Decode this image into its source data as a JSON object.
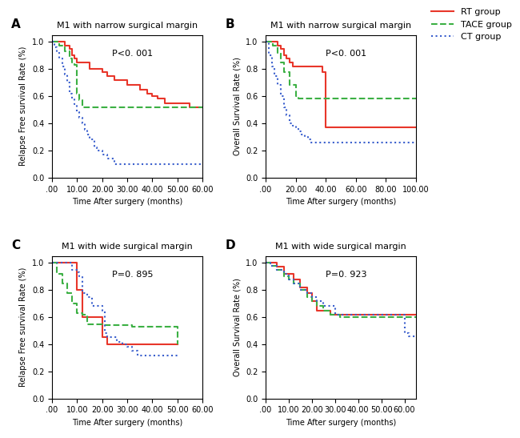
{
  "chart_data": [
    {
      "type": "step",
      "title": "M1 with narrow surgical margin",
      "y_label": "Relapse Free survival Rate (%)",
      "x_label": "Time After surgery (months)",
      "annotations": [
        "A",
        "P<0. 001"
      ],
      "xlim": [
        0,
        60
      ],
      "ylim": [
        0.0,
        1.05
      ],
      "xticks": [
        {
          "value": 0,
          "label": ".00"
        },
        {
          "value": 10,
          "label": "10.00"
        },
        {
          "value": 20,
          "label": "20.00"
        },
        {
          "value": 30,
          "label": "30.00"
        },
        {
          "value": 40,
          "label": "40.00"
        },
        {
          "value": 50,
          "label": "50.00"
        },
        {
          "value": 60,
          "label": "60.00"
        }
      ],
      "yticks": [
        0.0,
        0.2,
        0.4,
        0.6,
        0.8,
        1.0
      ],
      "legend": "upper right",
      "series": [
        {
          "name": "RT group",
          "color": "#e8362a",
          "line_style": "solid",
          "x": [
            0,
            3,
            5,
            7,
            8,
            9,
            10,
            12,
            15,
            18,
            20,
            22,
            25,
            30,
            35,
            38,
            40,
            42,
            45,
            55,
            60
          ],
          "values": [
            1.0,
            1.0,
            0.97,
            0.95,
            0.9,
            0.88,
            0.85,
            0.85,
            0.8,
            0.8,
            0.78,
            0.75,
            0.72,
            0.68,
            0.65,
            0.62,
            0.6,
            0.58,
            0.55,
            0.52,
            0.52
          ]
        },
        {
          "name": "TACE group",
          "color": "#3cb044",
          "line_style": "dashed",
          "x": [
            0,
            3,
            5,
            7,
            8,
            9,
            10,
            11,
            12,
            14,
            60
          ],
          "values": [
            1.0,
            0.97,
            0.93,
            0.88,
            0.85,
            0.83,
            0.62,
            0.57,
            0.52,
            0.52,
            0.52
          ]
        },
        {
          "name": "CT group",
          "color": "#3a5fcd",
          "line_style": "dotted",
          "x": [
            0,
            1,
            2,
            3,
            4,
            5,
            6,
            7,
            8,
            9,
            10,
            11,
            12,
            13,
            14,
            15,
            17,
            18,
            20,
            22,
            25,
            60
          ],
          "values": [
            1.0,
            0.96,
            0.92,
            0.88,
            0.82,
            0.76,
            0.7,
            0.62,
            0.58,
            0.54,
            0.48,
            0.44,
            0.4,
            0.35,
            0.32,
            0.28,
            0.22,
            0.2,
            0.17,
            0.14,
            0.1,
            0.1
          ]
        }
      ]
    },
    {
      "type": "step",
      "title": "M1 with narrow surgical margin",
      "y_label": "Overall Survival Rate (%)",
      "x_label": "Time After surgery (months)",
      "annotations": [
        "B",
        "P<0. 001"
      ],
      "xlim": [
        0,
        100
      ],
      "ylim": [
        0.0,
        1.05
      ],
      "xticks": [
        {
          "value": 0,
          "label": ".00"
        },
        {
          "value": 20,
          "label": "20.00"
        },
        {
          "value": 40,
          "label": "40.00"
        },
        {
          "value": 60,
          "label": "60.00"
        },
        {
          "value": 80,
          "label": "80.00"
        },
        {
          "value": 100,
          "label": "100.00"
        }
      ],
      "yticks": [
        0.0,
        0.2,
        0.4,
        0.6,
        0.8,
        1.0
      ],
      "series": [
        {
          "name": "RT group",
          "color": "#e8362a",
          "line_style": "solid",
          "x": [
            0,
            5,
            8,
            10,
            12,
            14,
            16,
            18,
            38,
            40,
            100
          ],
          "values": [
            1.0,
            1.0,
            0.97,
            0.95,
            0.9,
            0.88,
            0.85,
            0.82,
            0.78,
            0.37,
            0.37
          ]
        },
        {
          "name": "TACE group",
          "color": "#3cb044",
          "line_style": "dashed",
          "x": [
            0,
            2,
            5,
            8,
            10,
            12,
            16,
            20,
            22,
            28,
            100
          ],
          "values": [
            1.0,
            1.0,
            0.97,
            0.92,
            0.85,
            0.78,
            0.68,
            0.6,
            0.58,
            0.58,
            0.58
          ]
        },
        {
          "name": "CT group",
          "color": "#3a5fcd",
          "line_style": "dotted",
          "x": [
            0,
            2,
            4,
            6,
            8,
            10,
            12,
            14,
            16,
            18,
            20,
            22,
            24,
            26,
            28,
            30,
            100
          ],
          "values": [
            1.0,
            0.9,
            0.82,
            0.75,
            0.68,
            0.6,
            0.52,
            0.46,
            0.4,
            0.38,
            0.36,
            0.34,
            0.32,
            0.3,
            0.28,
            0.26,
            0.26
          ]
        }
      ]
    },
    {
      "type": "step",
      "title": "M1 with wide surgical margin",
      "y_label": "Relapse Free survival Rate (%)",
      "x_label": "Time After surgery (months)",
      "annotations": [
        "C",
        "P=0. 895"
      ],
      "xlim": [
        0,
        60
      ],
      "ylim": [
        0.0,
        1.05
      ],
      "xticks": [
        {
          "value": 0,
          "label": ".00"
        },
        {
          "value": 10,
          "label": "10.00"
        },
        {
          "value": 20,
          "label": "20.00"
        },
        {
          "value": 30,
          "label": "30.00"
        },
        {
          "value": 40,
          "label": "40.00"
        },
        {
          "value": 50,
          "label": "50.00"
        },
        {
          "value": 60,
          "label": "60.00"
        }
      ],
      "yticks": [
        0.0,
        0.2,
        0.4,
        0.6,
        0.8,
        1.0
      ],
      "series": [
        {
          "name": "RT group",
          "color": "#e8362a",
          "line_style": "solid",
          "x": [
            0,
            2,
            10,
            12,
            20,
            22,
            50
          ],
          "values": [
            1.0,
            1.0,
            0.8,
            0.6,
            0.45,
            0.4,
            0.4
          ]
        },
        {
          "name": "TACE group",
          "color": "#3cb044",
          "line_style": "dashed",
          "x": [
            0,
            2,
            4,
            6,
            8,
            10,
            12,
            14,
            18,
            20,
            22,
            28,
            32,
            48,
            50
          ],
          "values": [
            1.0,
            0.92,
            0.85,
            0.78,
            0.7,
            0.63,
            0.62,
            0.55,
            0.55,
            0.54,
            0.54,
            0.54,
            0.53,
            0.53,
            0.4
          ]
        },
        {
          "name": "CT group",
          "color": "#3a5fcd",
          "line_style": "dotted",
          "x": [
            0,
            8,
            10,
            11,
            12,
            14,
            16,
            20,
            21,
            22,
            26,
            28,
            30,
            32,
            34,
            50
          ],
          "values": [
            1.0,
            0.95,
            0.93,
            0.9,
            0.78,
            0.75,
            0.68,
            0.65,
            0.48,
            0.45,
            0.42,
            0.4,
            0.38,
            0.35,
            0.32,
            0.3
          ]
        }
      ]
    },
    {
      "type": "step",
      "title": "M1 with wide surgical margin",
      "y_label": "Overall Survival Rate (%)",
      "x_label": "Time After surgery (months)",
      "annotations": [
        "D",
        "P=0. 923"
      ],
      "xlim": [
        0,
        65
      ],
      "ylim": [
        0.0,
        1.05
      ],
      "xticks": [
        {
          "value": 0,
          "label": ".00"
        },
        {
          "value": 10,
          "label": "10.00"
        },
        {
          "value": 20,
          "label": "20.00"
        },
        {
          "value": 30,
          "label": "30.00"
        },
        {
          "value": 40,
          "label": "40.00"
        },
        {
          "value": 50,
          "label": "50.00"
        },
        {
          "value": 60,
          "label": "60.00"
        }
      ],
      "yticks": [
        0.0,
        0.2,
        0.4,
        0.6,
        0.8,
        1.0
      ],
      "series": [
        {
          "name": "RT group",
          "color": "#e8362a",
          "line_style": "solid",
          "x": [
            0,
            2,
            5,
            8,
            12,
            15,
            18,
            20,
            22,
            28,
            32,
            65
          ],
          "values": [
            1.0,
            1.0,
            0.97,
            0.92,
            0.88,
            0.82,
            0.78,
            0.72,
            0.65,
            0.62,
            0.62,
            0.62
          ]
        },
        {
          "name": "TACE group",
          "color": "#3cb044",
          "line_style": "dashed",
          "x": [
            0,
            2,
            5,
            8,
            10,
            12,
            15,
            18,
            20,
            22,
            25,
            28,
            32,
            60,
            65
          ],
          "values": [
            1.0,
            0.98,
            0.95,
            0.9,
            0.88,
            0.85,
            0.8,
            0.75,
            0.72,
            0.68,
            0.65,
            0.62,
            0.6,
            0.6,
            0.6
          ]
        },
        {
          "name": "CT group",
          "color": "#3a5fcd",
          "line_style": "dotted",
          "x": [
            0,
            2,
            5,
            8,
            10,
            12,
            15,
            18,
            20,
            22,
            25,
            30,
            60,
            62,
            65
          ],
          "values": [
            1.0,
            0.98,
            0.95,
            0.92,
            0.88,
            0.85,
            0.8,
            0.78,
            0.75,
            0.72,
            0.68,
            0.62,
            0.48,
            0.46,
            0.46
          ]
        }
      ]
    }
  ]
}
